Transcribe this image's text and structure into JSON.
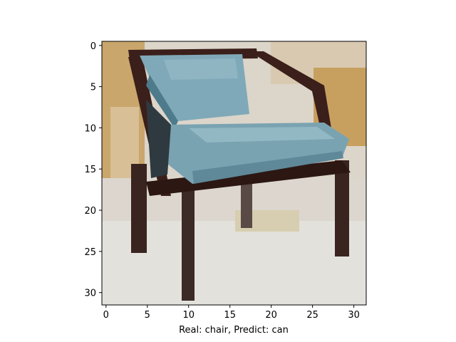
{
  "figure": {
    "xlabel": "Real: chair, Predict: can",
    "image_subject": "pixelated photo of a chair with light blue seat and backrest and dark wooden legs",
    "image_resolution": [
      32,
      32
    ],
    "x_ticks": [
      "0",
      "5",
      "10",
      "15",
      "20",
      "25",
      "30"
    ],
    "y_ticks": [
      "0",
      "5",
      "10",
      "15",
      "20",
      "25",
      "30"
    ],
    "x_tick_values": [
      0,
      5,
      10,
      15,
      20,
      25,
      30
    ],
    "y_tick_values": [
      0,
      5,
      10,
      15,
      20,
      25,
      30
    ]
  },
  "colors": {
    "chair_blue": "#7fa9b8",
    "chair_blue_dark": "#4d7b8c",
    "chair_frame": "#3b1f1a",
    "floor": "#e3e1dc",
    "wall_tan": "#c9a66b",
    "wall_light": "#d9cdb8"
  }
}
